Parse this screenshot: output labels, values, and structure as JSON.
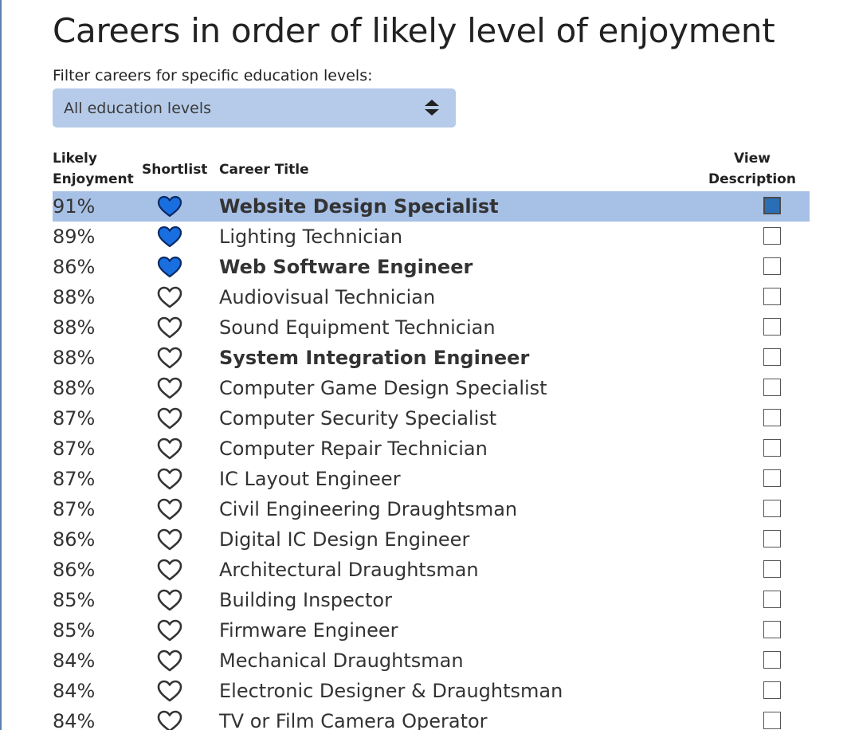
{
  "page": {
    "title": "Careers in order of likely level of enjoyment"
  },
  "filter": {
    "label": "Filter careers for specific education levels:",
    "selected": "All education levels"
  },
  "table": {
    "headers": {
      "enjoyment_line1": "Likely",
      "enjoyment_line2": "Enjoyment",
      "shortlist": "Shortlist",
      "career_title": "Career Title",
      "view_line1": "View",
      "view_line2": "Description"
    },
    "rows": [
      {
        "enjoyment": "91%",
        "shortlisted": true,
        "title": "Website Design Specialist",
        "bold": true,
        "view_checked": true,
        "selected": true
      },
      {
        "enjoyment": "89%",
        "shortlisted": true,
        "title": "Lighting Technician",
        "bold": false,
        "view_checked": false,
        "selected": false
      },
      {
        "enjoyment": "86%",
        "shortlisted": true,
        "title": "Web Software Engineer",
        "bold": true,
        "view_checked": false,
        "selected": false
      },
      {
        "enjoyment": "88%",
        "shortlisted": false,
        "title": "Audiovisual Technician",
        "bold": false,
        "view_checked": false,
        "selected": false
      },
      {
        "enjoyment": "88%",
        "shortlisted": false,
        "title": "Sound Equipment Technician",
        "bold": false,
        "view_checked": false,
        "selected": false
      },
      {
        "enjoyment": "88%",
        "shortlisted": false,
        "title": "System Integration Engineer",
        "bold": true,
        "view_checked": false,
        "selected": false
      },
      {
        "enjoyment": "88%",
        "shortlisted": false,
        "title": "Computer Game Design Specialist",
        "bold": false,
        "view_checked": false,
        "selected": false
      },
      {
        "enjoyment": "87%",
        "shortlisted": false,
        "title": "Computer Security Specialist",
        "bold": false,
        "view_checked": false,
        "selected": false
      },
      {
        "enjoyment": "87%",
        "shortlisted": false,
        "title": "Computer Repair Technician",
        "bold": false,
        "view_checked": false,
        "selected": false
      },
      {
        "enjoyment": "87%",
        "shortlisted": false,
        "title": "IC Layout Engineer",
        "bold": false,
        "view_checked": false,
        "selected": false
      },
      {
        "enjoyment": "87%",
        "shortlisted": false,
        "title": "Civil Engineering Draughtsman",
        "bold": false,
        "view_checked": false,
        "selected": false
      },
      {
        "enjoyment": "86%",
        "shortlisted": false,
        "title": "Digital IC Design Engineer",
        "bold": false,
        "view_checked": false,
        "selected": false
      },
      {
        "enjoyment": "86%",
        "shortlisted": false,
        "title": "Architectural Draughtsman",
        "bold": false,
        "view_checked": false,
        "selected": false
      },
      {
        "enjoyment": "85%",
        "shortlisted": false,
        "title": "Building Inspector",
        "bold": false,
        "view_checked": false,
        "selected": false
      },
      {
        "enjoyment": "85%",
        "shortlisted": false,
        "title": "Firmware Engineer",
        "bold": false,
        "view_checked": false,
        "selected": false
      },
      {
        "enjoyment": "84%",
        "shortlisted": false,
        "title": "Mechanical Draughtsman",
        "bold": false,
        "view_checked": false,
        "selected": false
      },
      {
        "enjoyment": "84%",
        "shortlisted": false,
        "title": "Electronic Designer & Draughtsman",
        "bold": false,
        "view_checked": false,
        "selected": false
      },
      {
        "enjoyment": "84%",
        "shortlisted": false,
        "title": "TV or Film Camera Operator",
        "bold": false,
        "view_checked": false,
        "selected": false
      }
    ]
  },
  "colors": {
    "heart_filled": "#1a6fe0",
    "heart_outline": "#333333",
    "selected_row": "#a7c0e6",
    "select_bg": "#b6cbe9",
    "checkbox_checked": "#2a6fb5"
  },
  "icons": {
    "shortlist_filled": "heart-filled-icon",
    "shortlist_empty": "heart-outline-icon",
    "select_arrows": "sort-arrows-icon"
  }
}
